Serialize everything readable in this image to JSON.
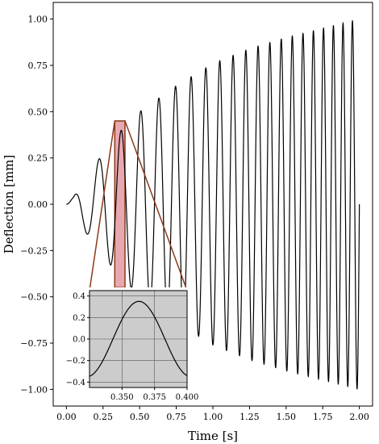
{
  "chart_data": {
    "type": "line",
    "xlabel": "Time [s]",
    "ylabel": "Deflection [mm]",
    "xlim": [
      -0.09,
      2.09
    ],
    "ylim": [
      -1.09,
      1.09
    ],
    "xticks": [
      0.0,
      0.25,
      0.5,
      0.75,
      1.0,
      1.25,
      1.5,
      1.75,
      2.0
    ],
    "xtick_labels": [
      "0.00",
      "0.25",
      "0.50",
      "0.75",
      "1.00",
      "1.25",
      "1.50",
      "1.75",
      "2.00"
    ],
    "yticks": [
      -1.0,
      -0.75,
      -0.5,
      -0.25,
      0.0,
      0.25,
      0.5,
      0.75,
      1.0
    ],
    "ytick_labels": [
      "−1.00",
      "−0.75",
      "−0.50",
      "−0.25",
      "0.00",
      "0.25",
      "0.50",
      "0.75",
      "1.00"
    ],
    "grid": false,
    "series": [
      {
        "color": "#000000",
        "signal": "swept-sine",
        "t_range": [
          0.0,
          2.0
        ],
        "start_freq_hz": 5,
        "end_freq_hz": 16,
        "envelope": [
          [
            0.0,
            0.0
          ],
          [
            0.05,
            0.04
          ],
          [
            0.1,
            0.12
          ],
          [
            0.2,
            0.22
          ],
          [
            0.35,
            0.38
          ],
          [
            0.5,
            0.5
          ],
          [
            0.75,
            0.64
          ],
          [
            1.0,
            0.76
          ],
          [
            1.25,
            0.84
          ],
          [
            1.5,
            0.9
          ],
          [
            1.75,
            0.95
          ],
          [
            2.0,
            1.0
          ]
        ]
      }
    ],
    "highlight_region": {
      "x_range": [
        0.33,
        0.4
      ],
      "y_range": [
        -0.45,
        0.45
      ],
      "fill": "#e8a8b0",
      "stroke": "#8b3a1a"
    },
    "inset": {
      "xlim": [
        0.325,
        0.4
      ],
      "ylim": [
        -0.45,
        0.45
      ],
      "xticks": [
        0.35,
        0.375,
        0.4
      ],
      "xtick_labels": [
        "0.350",
        "0.375",
        "0.400"
      ],
      "yticks": [
        -0.4,
        -0.2,
        0.0,
        0.2,
        0.4
      ],
      "ytick_labels": [
        "−0.4",
        "−0.2",
        "0.0",
        "0.2",
        "0.4"
      ],
      "grid": true,
      "background": "#cccccc",
      "curve": {
        "type": "sine",
        "amplitude": 0.35,
        "peak_x": 0.363,
        "period": 0.08
      }
    }
  }
}
